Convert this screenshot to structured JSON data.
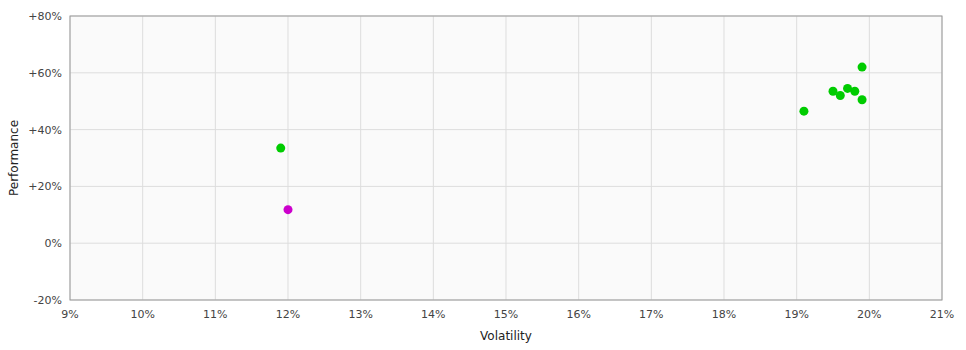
{
  "chart_data": {
    "type": "scatter",
    "xlabel": "Volatility",
    "ylabel": "Performance",
    "xlim": [
      0.09,
      0.21
    ],
    "ylim": [
      -0.2,
      0.8
    ],
    "xticks": [
      {
        "value": 0.09,
        "label": "9%"
      },
      {
        "value": 0.1,
        "label": "10%"
      },
      {
        "value": 0.11,
        "label": "11%"
      },
      {
        "value": 0.12,
        "label": "12%"
      },
      {
        "value": 0.13,
        "label": "13%"
      },
      {
        "value": 0.14,
        "label": "14%"
      },
      {
        "value": 0.15,
        "label": "15%"
      },
      {
        "value": 0.16,
        "label": "16%"
      },
      {
        "value": 0.17,
        "label": "17%"
      },
      {
        "value": 0.18,
        "label": "18%"
      },
      {
        "value": 0.19,
        "label": "19%"
      },
      {
        "value": 0.2,
        "label": "20%"
      },
      {
        "value": 0.21,
        "label": "21%"
      }
    ],
    "yticks": [
      {
        "value": -0.2,
        "label": "-20%"
      },
      {
        "value": 0.0,
        "label": "0%"
      },
      {
        "value": 0.2,
        "label": "+20%"
      },
      {
        "value": 0.4,
        "label": "+40%"
      },
      {
        "value": 0.6,
        "label": "+60%"
      },
      {
        "value": 0.8,
        "label": "+80%"
      }
    ],
    "grid": true,
    "series": [
      {
        "color": "#00cc00",
        "x": [
          0.119,
          0.191,
          0.195,
          0.196,
          0.197,
          0.198,
          0.199,
          0.199
        ],
        "values": [
          0.335,
          0.465,
          0.535,
          0.52,
          0.545,
          0.535,
          0.505,
          0.62
        ]
      },
      {
        "color": "#cc00cc",
        "x": [
          0.12
        ],
        "values": [
          0.118
        ]
      }
    ]
  }
}
